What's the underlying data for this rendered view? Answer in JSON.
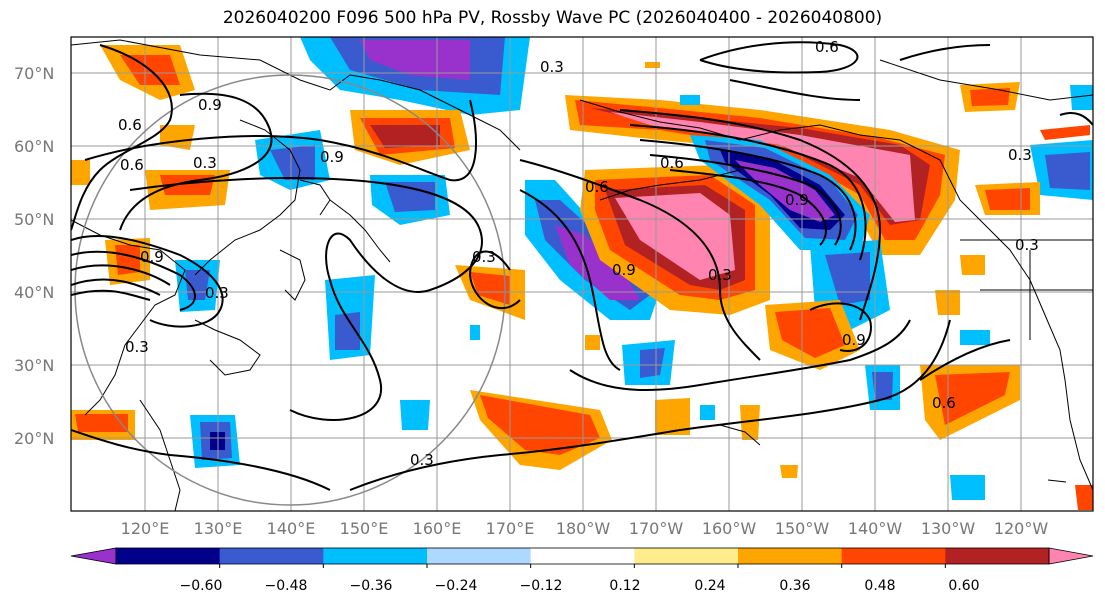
{
  "title": "2026040200 F096 500 hPa PV, Rossby Wave PC (2026040400 - 2026040800)",
  "map": {
    "lat_labels": [
      "70°N",
      "60°N",
      "50°N",
      "40°N",
      "30°N",
      "20°N"
    ],
    "lon_labels": [
      "120°E",
      "130°E",
      "140°E",
      "150°E",
      "160°E",
      "170°E",
      "180°W",
      "170°W",
      "160°W",
      "150°W",
      "140°W",
      "130°W",
      "120°W"
    ],
    "contour_labels": [
      "0.6",
      "0.3",
      "0.9",
      "0.3",
      "0.6",
      "0.9",
      "0.3",
      "0.6",
      "0.9",
      "0.6",
      "0.3",
      "0.3",
      "0.9",
      "0.3",
      "0.9",
      "0.6",
      "0.3",
      "0.6",
      "0.9",
      "0.3",
      "0.3"
    ]
  },
  "colorbar": {
    "ticks": [
      "−0.60",
      "−0.48",
      "−0.36",
      "−0.24",
      "−0.12",
      "0.12",
      "0.24",
      "0.36",
      "0.48",
      "0.60"
    ],
    "colors": [
      "#9932cc",
      "#00008b",
      "#3a5bd0",
      "#00bfff",
      "#add8ff",
      "#ffffff",
      "#ffec8b",
      "#ffa500",
      "#ff4500",
      "#b22222",
      "#ff85b0"
    ]
  }
}
